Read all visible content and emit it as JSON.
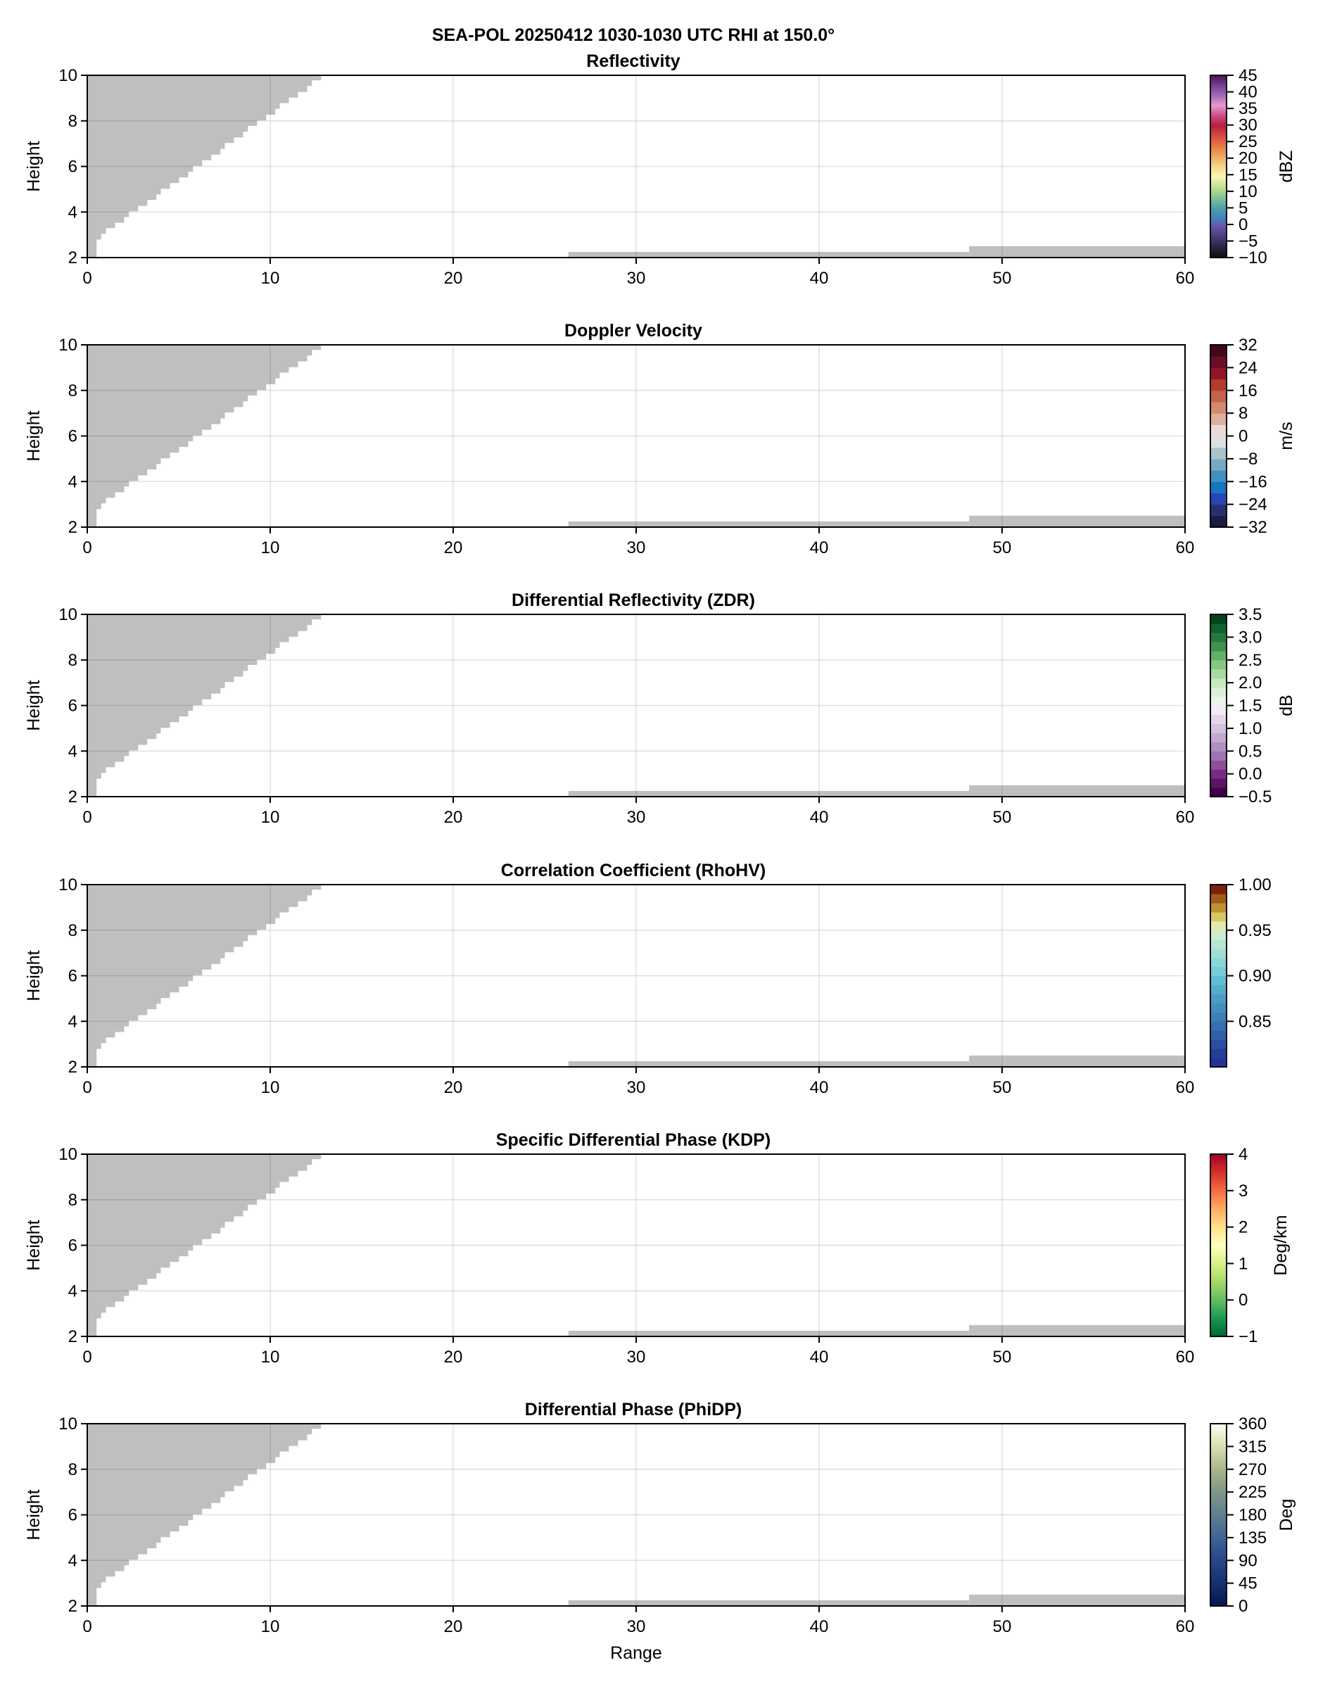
{
  "figure_title": "SEA-POL 20250412 1030-1030 UTC RHI at 150.0°",
  "no_data_color": "#bfbfbf",
  "mask": {
    "upper_steps": [
      [
        0.0,
        2.0
      ],
      [
        0.49,
        2.79
      ],
      [
        0.74,
        3.04
      ],
      [
        1.0,
        3.29
      ],
      [
        1.5,
        3.53
      ],
      [
        2.0,
        3.78
      ],
      [
        2.26,
        4.03
      ],
      [
        2.76,
        4.27
      ],
      [
        3.26,
        4.53
      ],
      [
        3.76,
        4.77
      ],
      [
        4.0,
        5.02
      ],
      [
        4.5,
        5.27
      ],
      [
        5.0,
        5.52
      ],
      [
        5.5,
        5.77
      ],
      [
        5.76,
        6.02
      ],
      [
        6.26,
        6.27
      ],
      [
        6.76,
        6.52
      ],
      [
        7.26,
        6.77
      ],
      [
        7.5,
        7.03
      ],
      [
        8.0,
        7.27
      ],
      [
        8.5,
        7.52
      ],
      [
        8.76,
        7.78
      ],
      [
        9.26,
        8.02
      ],
      [
        9.76,
        8.27
      ],
      [
        10.26,
        8.53
      ],
      [
        10.5,
        8.78
      ],
      [
        11.0,
        9.02
      ],
      [
        11.5,
        9.27
      ],
      [
        12.0,
        9.53
      ],
      [
        12.26,
        9.78
      ],
      [
        12.76,
        10.0
      ]
    ],
    "lower_bands": [
      [
        26.3,
        48.2,
        2.25
      ],
      [
        48.2,
        60.0,
        2.5
      ]
    ]
  },
  "chart_data": [
    {
      "type": "heatmap",
      "title": "Reflectivity",
      "xlabel": "",
      "ylabel": "Height",
      "xlim": [
        0,
        60
      ],
      "ylim": [
        2,
        10
      ],
      "xticks": [
        0,
        10,
        20,
        30,
        40,
        50,
        60
      ],
      "yticks": [
        2,
        4,
        6,
        8,
        10
      ],
      "grid": true,
      "colorbar": {
        "label": "dBZ",
        "range": [
          -10,
          45
        ],
        "ticks": [
          "-10",
          "-5",
          "0",
          "5",
          "10",
          "15",
          "20",
          "25",
          "30",
          "35",
          "40",
          "45"
        ],
        "discrete": false,
        "colors": [
          "#0d0d10",
          "#2b2440",
          "#4a3a78",
          "#6a52a8",
          "#3f86bf",
          "#4fa6a6",
          "#86c695",
          "#c8e08e",
          "#f8f7b4",
          "#f3d68a",
          "#eeaa60",
          "#e97a45",
          "#d84a3f",
          "#b81e40",
          "#d0488a",
          "#e69ccb",
          "#a06bb5",
          "#7a3e95",
          "#4a1050"
        ]
      }
    },
    {
      "type": "heatmap",
      "title": "Doppler Velocity",
      "xlabel": "",
      "ylabel": "Height",
      "xlim": [
        0,
        60
      ],
      "ylim": [
        2,
        10
      ],
      "xticks": [
        0,
        10,
        20,
        30,
        40,
        50,
        60
      ],
      "yticks": [
        2,
        4,
        6,
        8,
        10
      ],
      "grid": true,
      "colorbar": {
        "label": "m/s",
        "range": [
          -32,
          32
        ],
        "ticks": [
          "-32",
          "-24",
          "-16",
          "-8",
          "0",
          "8",
          "16",
          "24",
          "32"
        ],
        "discrete": true,
        "colors": [
          "#1a1c45",
          "#29306f",
          "#2548b2",
          "#1873c1",
          "#4390bf",
          "#75abc1",
          "#a9c3cb",
          "#dcdfe1",
          "#e9dad6",
          "#dfafa0",
          "#d38b70",
          "#c5634a",
          "#b53c2a",
          "#911428",
          "#6c0e28",
          "#420a18"
        ]
      }
    },
    {
      "type": "heatmap",
      "title": "Differential Reflectivity (ZDR)",
      "xlabel": "",
      "ylabel": "Height",
      "xlim": [
        0,
        60
      ],
      "ylim": [
        2,
        10
      ],
      "xticks": [
        0,
        10,
        20,
        30,
        40,
        50,
        60
      ],
      "yticks": [
        2,
        4,
        6,
        8,
        10
      ],
      "grid": true,
      "colorbar": {
        "label": "dB",
        "range": [
          -0.5,
          3.5
        ],
        "ticks": [
          "-0.5",
          "0.0",
          "0.5",
          "1.0",
          "1.5",
          "2.0",
          "2.5",
          "3.0",
          "3.5"
        ],
        "discrete": true,
        "colors": [
          "#40004b",
          "#5a1463",
          "#782a86",
          "#8c4f9c",
          "#9e74b2",
          "#b08fc2",
          "#c3a8d2",
          "#d6c0e0",
          "#e6d5ea",
          "#f1ebf3",
          "#eef3ec",
          "#dcefd8",
          "#c6e8c0",
          "#a8dba0",
          "#86c883",
          "#62b068",
          "#3f9350",
          "#237a3d",
          "#136030",
          "#00441b"
        ]
      }
    },
    {
      "type": "heatmap",
      "title": "Correlation Coefficient (RhoHV)",
      "xlabel": "",
      "ylabel": "Height",
      "xlim": [
        0,
        60
      ],
      "ylim": [
        2,
        10
      ],
      "xticks": [
        0,
        10,
        20,
        30,
        40,
        50,
        60
      ],
      "yticks": [
        2,
        4,
        6,
        8,
        10
      ],
      "grid": true,
      "colorbar": {
        "label": "",
        "range": [
          0.8,
          1.0
        ],
        "ticks": [
          "0.85",
          "0.90",
          "0.95",
          "1.00"
        ],
        "tick_values": [
          0.85,
          0.9,
          0.95,
          1.0
        ],
        "discrete": true,
        "colors": [
          "#223399",
          "#253e9c",
          "#2b4ea3",
          "#3160a9",
          "#3570b0",
          "#3b80b8",
          "#428fbf",
          "#4a9dc5",
          "#53aecc",
          "#60bdd3",
          "#73ccd8",
          "#8bd6d6",
          "#a2dfd3",
          "#b4e6d3",
          "#c9ecd2",
          "#e3eaa9",
          "#d7c862",
          "#bc9132",
          "#a15c1a",
          "#7f1f0c"
        ]
      }
    },
    {
      "type": "heatmap",
      "title": "Specific Differential Phase (KDP)",
      "xlabel": "",
      "ylabel": "Height",
      "xlim": [
        0,
        60
      ],
      "ylim": [
        2,
        10
      ],
      "xticks": [
        0,
        10,
        20,
        30,
        40,
        50,
        60
      ],
      "yticks": [
        2,
        4,
        6,
        8,
        10
      ],
      "grid": true,
      "colorbar": {
        "label": "Deg/km",
        "range": [
          -1,
          4
        ],
        "ticks": [
          "-1",
          "0",
          "1",
          "2",
          "3",
          "4"
        ],
        "discrete": false,
        "colors": [
          "#006837",
          "#1a9850",
          "#66bd63",
          "#a6d96a",
          "#d9ef8b",
          "#ffffbf",
          "#fee08b",
          "#fdae61",
          "#f46d43",
          "#d73027",
          "#a50026"
        ]
      }
    },
    {
      "type": "heatmap",
      "title": "Differential Phase (PhiDP)",
      "xlabel": "Range",
      "ylabel": "Height",
      "xlim": [
        0,
        60
      ],
      "ylim": [
        2,
        10
      ],
      "xticks": [
        0,
        10,
        20,
        30,
        40,
        50,
        60
      ],
      "yticks": [
        2,
        4,
        6,
        8,
        10
      ],
      "grid": true,
      "colorbar": {
        "label": "Deg",
        "range": [
          0,
          360
        ],
        "ticks": [
          "0",
          "45",
          "90",
          "135",
          "180",
          "225",
          "270",
          "315",
          "360"
        ],
        "discrete": false,
        "colors": [
          "#051650",
          "#16306f",
          "#27468a",
          "#3f6595",
          "#5f7f8e",
          "#7f9686",
          "#a8b88b",
          "#dcdeae",
          "#fefef3"
        ]
      }
    }
  ]
}
